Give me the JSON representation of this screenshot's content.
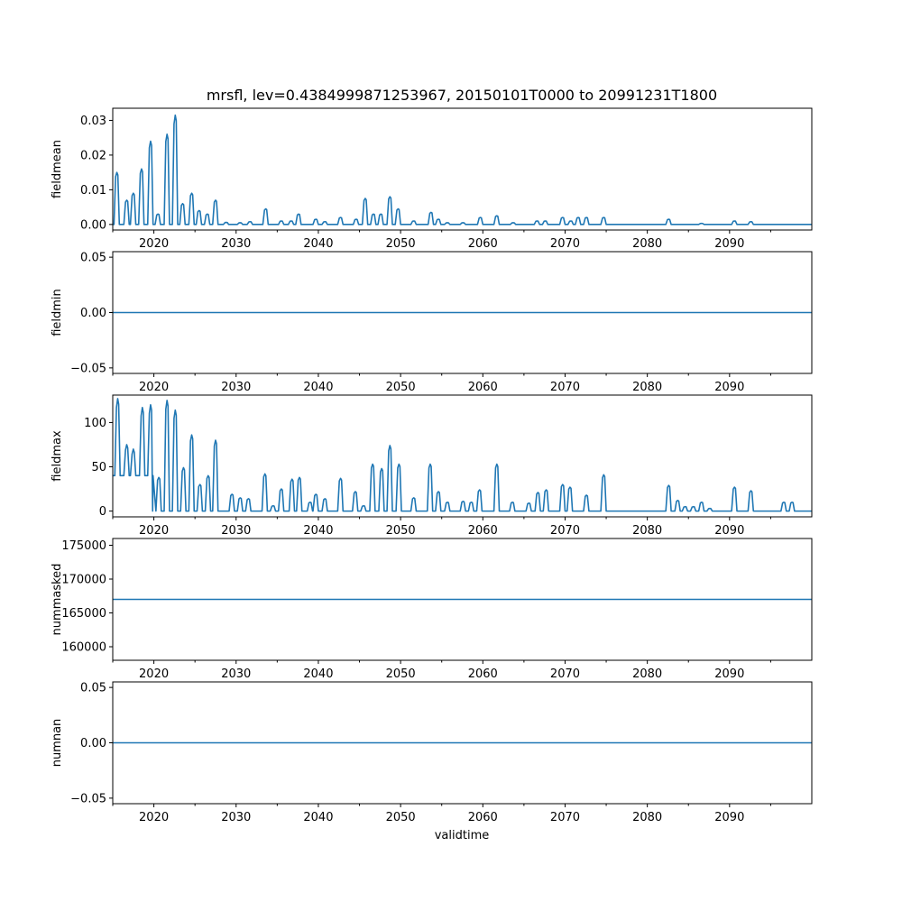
{
  "chart_data": {
    "title": "mrsfl, lev=0.4384999871253967, 20150101T0000 to 20991231T1800",
    "xlabel": "validtime",
    "xlim": [
      2015.0,
      2100.0
    ],
    "x_ticks": [
      2020,
      2030,
      2040,
      2050,
      2060,
      2070,
      2080,
      2090
    ],
    "x_tick_labels": [
      "2020",
      "2030",
      "2040",
      "2050",
      "2060",
      "2070",
      "2080",
      "2090"
    ],
    "panels": [
      {
        "type": "line",
        "ylabel": "fieldmean",
        "ylim": [
          -0.0016,
          0.0335
        ],
        "y_ticks": [
          0.0,
          0.01,
          0.02,
          0.03
        ],
        "y_tick_labels": [
          "0.00",
          "0.01",
          "0.02",
          "0.03"
        ],
        "baseline": 0.0,
        "peaks": [
          [
            2015.5,
            0.015
          ],
          [
            2016.7,
            0.007
          ],
          [
            2017.5,
            0.009
          ],
          [
            2018.5,
            0.016
          ],
          [
            2019.6,
            0.024
          ],
          [
            2020.5,
            0.003
          ],
          [
            2021.6,
            0.026
          ],
          [
            2022.6,
            0.0315
          ],
          [
            2023.5,
            0.006
          ],
          [
            2024.6,
            0.009
          ],
          [
            2025.5,
            0.004
          ],
          [
            2026.5,
            0.003
          ],
          [
            2027.5,
            0.007
          ],
          [
            2028.8,
            0.0006
          ],
          [
            2030.5,
            0.0005
          ],
          [
            2031.7,
            0.0008
          ],
          [
            2033.6,
            0.0045
          ],
          [
            2035.5,
            0.001
          ],
          [
            2036.7,
            0.001
          ],
          [
            2037.6,
            0.003
          ],
          [
            2039.7,
            0.0015
          ],
          [
            2040.8,
            0.0008
          ],
          [
            2042.7,
            0.002
          ],
          [
            2044.6,
            0.0015
          ],
          [
            2045.7,
            0.0075
          ],
          [
            2046.7,
            0.003
          ],
          [
            2047.6,
            0.003
          ],
          [
            2048.7,
            0.008
          ],
          [
            2049.7,
            0.0045
          ],
          [
            2051.6,
            0.001
          ],
          [
            2053.7,
            0.0035
          ],
          [
            2054.6,
            0.0015
          ],
          [
            2055.7,
            0.0005
          ],
          [
            2057.6,
            0.0005
          ],
          [
            2059.7,
            0.002
          ],
          [
            2061.7,
            0.0025
          ],
          [
            2063.7,
            0.0005
          ],
          [
            2066.6,
            0.001
          ],
          [
            2067.6,
            0.001
          ],
          [
            2069.7,
            0.002
          ],
          [
            2070.7,
            0.001
          ],
          [
            2071.6,
            0.002
          ],
          [
            2072.6,
            0.002
          ],
          [
            2074.7,
            0.002
          ],
          [
            2082.6,
            0.0015
          ],
          [
            2086.6,
            0.0003
          ],
          [
            2090.6,
            0.001
          ],
          [
            2092.6,
            0.0008
          ]
        ]
      },
      {
        "type": "line",
        "ylabel": "fieldmin",
        "ylim": [
          -0.055,
          0.055
        ],
        "y_ticks": [
          -0.05,
          0.0,
          0.05
        ],
        "y_tick_labels": [
          "−0.05",
          "0.00",
          "0.05"
        ],
        "constant": 0.0
      },
      {
        "type": "line",
        "ylabel": "fieldmax",
        "ylim": [
          -6.5,
          131
        ],
        "y_ticks": [
          0,
          50,
          100
        ],
        "y_tick_labels": [
          "0",
          "50",
          "100"
        ],
        "baseline": 0.0,
        "early_baseline": {
          "from": 2015.0,
          "to": 2019.8,
          "value": 40
        },
        "peaks": [
          [
            2015.6,
            127
          ],
          [
            2016.7,
            75
          ],
          [
            2017.5,
            70
          ],
          [
            2018.6,
            117
          ],
          [
            2019.6,
            120
          ],
          [
            2020.6,
            38
          ],
          [
            2021.6,
            125
          ],
          [
            2022.6,
            114
          ],
          [
            2023.6,
            49
          ],
          [
            2024.6,
            86
          ],
          [
            2025.6,
            30
          ],
          [
            2026.6,
            40
          ],
          [
            2027.5,
            80
          ],
          [
            2029.5,
            19
          ],
          [
            2030.5,
            15
          ],
          [
            2031.5,
            14
          ],
          [
            2033.5,
            42
          ],
          [
            2034.5,
            6
          ],
          [
            2035.5,
            25
          ],
          [
            2036.8,
            36
          ],
          [
            2037.7,
            38
          ],
          [
            2039.0,
            10
          ],
          [
            2039.7,
            19
          ],
          [
            2040.8,
            14
          ],
          [
            2042.7,
            37
          ],
          [
            2044.5,
            22
          ],
          [
            2045.5,
            6
          ],
          [
            2046.6,
            53
          ],
          [
            2047.7,
            48
          ],
          [
            2048.7,
            74
          ],
          [
            2049.8,
            53
          ],
          [
            2051.6,
            15
          ],
          [
            2053.6,
            53
          ],
          [
            2054.6,
            22
          ],
          [
            2055.7,
            10
          ],
          [
            2057.6,
            11
          ],
          [
            2058.6,
            10
          ],
          [
            2059.6,
            24
          ],
          [
            2061.7,
            53
          ],
          [
            2063.6,
            10
          ],
          [
            2065.6,
            9
          ],
          [
            2066.7,
            21
          ],
          [
            2067.7,
            24
          ],
          [
            2069.7,
            30
          ],
          [
            2070.6,
            27
          ],
          [
            2072.6,
            18
          ],
          [
            2074.7,
            41
          ],
          [
            2082.6,
            29
          ],
          [
            2083.7,
            12
          ],
          [
            2084.6,
            5
          ],
          [
            2085.6,
            5
          ],
          [
            2086.6,
            10
          ],
          [
            2087.6,
            3
          ],
          [
            2090.6,
            27
          ],
          [
            2092.6,
            23
          ],
          [
            2096.6,
            10
          ],
          [
            2097.6,
            10
          ]
        ]
      },
      {
        "type": "line",
        "ylabel": "nummasked",
        "ylim": [
          158000,
          176000
        ],
        "y_ticks": [
          160000,
          165000,
          170000,
          175000
        ],
        "y_tick_labels": [
          "160000",
          "165000",
          "170000",
          "175000"
        ],
        "constant": 167000
      },
      {
        "type": "line",
        "ylabel": "numnan",
        "ylim": [
          -0.055,
          0.055
        ],
        "y_ticks": [
          -0.05,
          0.0,
          0.05
        ],
        "y_tick_labels": [
          "−0.05",
          "0.00",
          "0.05"
        ],
        "constant": 0.0
      }
    ]
  },
  "colors": {
    "series": "#1f77b4",
    "axes": "#000000",
    "background": "#ffffff"
  }
}
